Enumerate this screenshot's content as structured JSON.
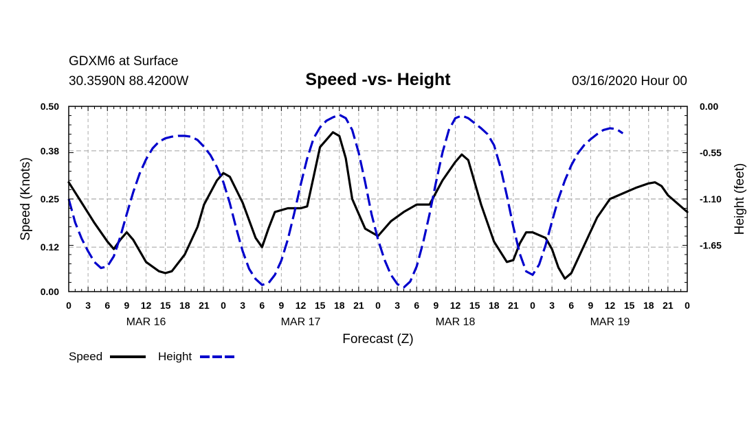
{
  "header": {
    "station": "GDXM6 at Surface",
    "coords": "30.3590N 88.4200W",
    "title": "Speed -vs- Height",
    "date": "03/16/2020 Hour 00"
  },
  "chart_data": {
    "type": "line",
    "title": "Speed -vs- Height",
    "xlabel": "Forecast (Z)",
    "ylabel_left": "Speed (Knots)",
    "ylabel_right": "Height (feet)",
    "x_range_hours": [
      0,
      96
    ],
    "ylim_left": [
      0,
      0.5
    ],
    "ylim_right": [
      -2.2,
      0
    ],
    "left_ticks": [
      "0.00",
      "0.12",
      "0.25",
      "0.38",
      "0.50"
    ],
    "right_ticks": [
      "0.00",
      "-0.55",
      "-1.10",
      "-1.65"
    ],
    "x_tick_labels": [
      "0",
      "3",
      "6",
      "9",
      "12",
      "15",
      "18",
      "21",
      "0",
      "3",
      "6",
      "9",
      "12",
      "15",
      "18",
      "21",
      "0",
      "3",
      "6",
      "9",
      "12",
      "15",
      "18",
      "21",
      "0",
      "3",
      "6",
      "9",
      "12",
      "15",
      "18",
      "21",
      "0"
    ],
    "date_labels": [
      {
        "label": "MAR 16",
        "hour": 12
      },
      {
        "label": "MAR 17",
        "hour": 36
      },
      {
        "label": "MAR 18",
        "hour": 60
      },
      {
        "label": "MAR 19",
        "hour": 84
      }
    ],
    "grid": true,
    "legend": {
      "position": "bottom-left",
      "entries": [
        "Speed",
        "Height"
      ]
    },
    "series": [
      {
        "name": "Speed",
        "axis": "left",
        "style": "solid",
        "color": "#000000",
        "points": [
          [
            0,
            0.295
          ],
          [
            2,
            0.24
          ],
          [
            4,
            0.185
          ],
          [
            6,
            0.135
          ],
          [
            7,
            0.115
          ],
          [
            8,
            0.14
          ],
          [
            9,
            0.16
          ],
          [
            10,
            0.14
          ],
          [
            12,
            0.08
          ],
          [
            14,
            0.055
          ],
          [
            15,
            0.05
          ],
          [
            16,
            0.055
          ],
          [
            18,
            0.1
          ],
          [
            20,
            0.175
          ],
          [
            21,
            0.235
          ],
          [
            23,
            0.3
          ],
          [
            24,
            0.32
          ],
          [
            25,
            0.31
          ],
          [
            27,
            0.24
          ],
          [
            29,
            0.145
          ],
          [
            30,
            0.12
          ],
          [
            31,
            0.17
          ],
          [
            32,
            0.215
          ],
          [
            34,
            0.225
          ],
          [
            36,
            0.225
          ],
          [
            37,
            0.23
          ],
          [
            38,
            0.31
          ],
          [
            39,
            0.39
          ],
          [
            41,
            0.43
          ],
          [
            42,
            0.42
          ],
          [
            43,
            0.36
          ],
          [
            44,
            0.25
          ],
          [
            46,
            0.17
          ],
          [
            48,
            0.15
          ],
          [
            50,
            0.19
          ],
          [
            52,
            0.215
          ],
          [
            54,
            0.235
          ],
          [
            55,
            0.235
          ],
          [
            56,
            0.235
          ],
          [
            58,
            0.3
          ],
          [
            60,
            0.35
          ],
          [
            61,
            0.37
          ],
          [
            62,
            0.355
          ],
          [
            64,
            0.235
          ],
          [
            66,
            0.135
          ],
          [
            68,
            0.08
          ],
          [
            69,
            0.085
          ],
          [
            70,
            0.13
          ],
          [
            71,
            0.16
          ],
          [
            72,
            0.16
          ],
          [
            74,
            0.145
          ],
          [
            75,
            0.115
          ],
          [
            76,
            0.065
          ],
          [
            77,
            0.035
          ],
          [
            78,
            0.05
          ],
          [
            80,
            0.125
          ],
          [
            82,
            0.2
          ],
          [
            84,
            0.25
          ],
          [
            86,
            0.265
          ],
          [
            88,
            0.28
          ],
          [
            90,
            0.292
          ],
          [
            91,
            0.295
          ],
          [
            92,
            0.285
          ],
          [
            93,
            0.26
          ],
          [
            94,
            0.245
          ],
          [
            96,
            0.215
          ]
        ]
      },
      {
        "name": "Height",
        "axis": "right",
        "style": "dashed",
        "color": "#0000cc",
        "points": [
          [
            0,
            -1.1
          ],
          [
            1,
            -1.38
          ],
          [
            2,
            -1.57
          ],
          [
            3,
            -1.72
          ],
          [
            4,
            -1.85
          ],
          [
            5,
            -1.92
          ],
          [
            6,
            -1.9
          ],
          [
            7,
            -1.78
          ],
          [
            8,
            -1.55
          ],
          [
            9,
            -1.28
          ],
          [
            10,
            -1.02
          ],
          [
            11,
            -0.8
          ],
          [
            12,
            -0.63
          ],
          [
            13,
            -0.5
          ],
          [
            14,
            -0.42
          ],
          [
            15,
            -0.38
          ],
          [
            16,
            -0.36
          ],
          [
            17,
            -0.35
          ],
          [
            18,
            -0.35
          ],
          [
            19,
            -0.36
          ],
          [
            20,
            -0.4
          ],
          [
            21,
            -0.48
          ],
          [
            22,
            -0.58
          ],
          [
            23,
            -0.72
          ],
          [
            24,
            -0.9
          ],
          [
            25,
            -1.15
          ],
          [
            26,
            -1.45
          ],
          [
            27,
            -1.72
          ],
          [
            28,
            -1.93
          ],
          [
            29,
            -2.05
          ],
          [
            30,
            -2.12
          ],
          [
            31,
            -2.1
          ],
          [
            32,
            -2.0
          ],
          [
            33,
            -1.83
          ],
          [
            34,
            -1.58
          ],
          [
            35,
            -1.27
          ],
          [
            36,
            -0.93
          ],
          [
            37,
            -0.62
          ],
          [
            38,
            -0.38
          ],
          [
            39,
            -0.25
          ],
          [
            40,
            -0.17
          ],
          [
            41,
            -0.13
          ],
          [
            42,
            -0.1
          ],
          [
            43,
            -0.14
          ],
          [
            44,
            -0.28
          ],
          [
            45,
            -0.55
          ],
          [
            46,
            -0.9
          ],
          [
            47,
            -1.28
          ],
          [
            48,
            -1.58
          ],
          [
            49,
            -1.82
          ],
          [
            50,
            -2.0
          ],
          [
            51,
            -2.11
          ],
          [
            52,
            -2.15
          ],
          [
            53,
            -2.08
          ],
          [
            54,
            -1.9
          ],
          [
            55,
            -1.62
          ],
          [
            56,
            -1.28
          ],
          [
            57,
            -0.9
          ],
          [
            58,
            -0.55
          ],
          [
            59,
            -0.28
          ],
          [
            60,
            -0.14
          ],
          [
            61,
            -0.11
          ],
          [
            62,
            -0.14
          ],
          [
            63,
            -0.2
          ],
          [
            64,
            -0.26
          ],
          [
            65,
            -0.33
          ],
          [
            66,
            -0.46
          ],
          [
            67,
            -0.72
          ],
          [
            68,
            -1.06
          ],
          [
            69,
            -1.43
          ],
          [
            70,
            -1.75
          ],
          [
            71,
            -1.96
          ],
          [
            72,
            -2.0
          ],
          [
            73,
            -1.88
          ],
          [
            74,
            -1.65
          ],
          [
            75,
            -1.37
          ],
          [
            76,
            -1.1
          ],
          [
            77,
            -0.88
          ],
          [
            78,
            -0.7
          ],
          [
            79,
            -0.56
          ],
          [
            80,
            -0.46
          ],
          [
            81,
            -0.39
          ],
          [
            82,
            -0.33
          ],
          [
            83,
            -0.28
          ],
          [
            84,
            -0.26
          ],
          [
            85,
            -0.27
          ],
          [
            86,
            -0.32
          ]
        ]
      }
    ]
  }
}
